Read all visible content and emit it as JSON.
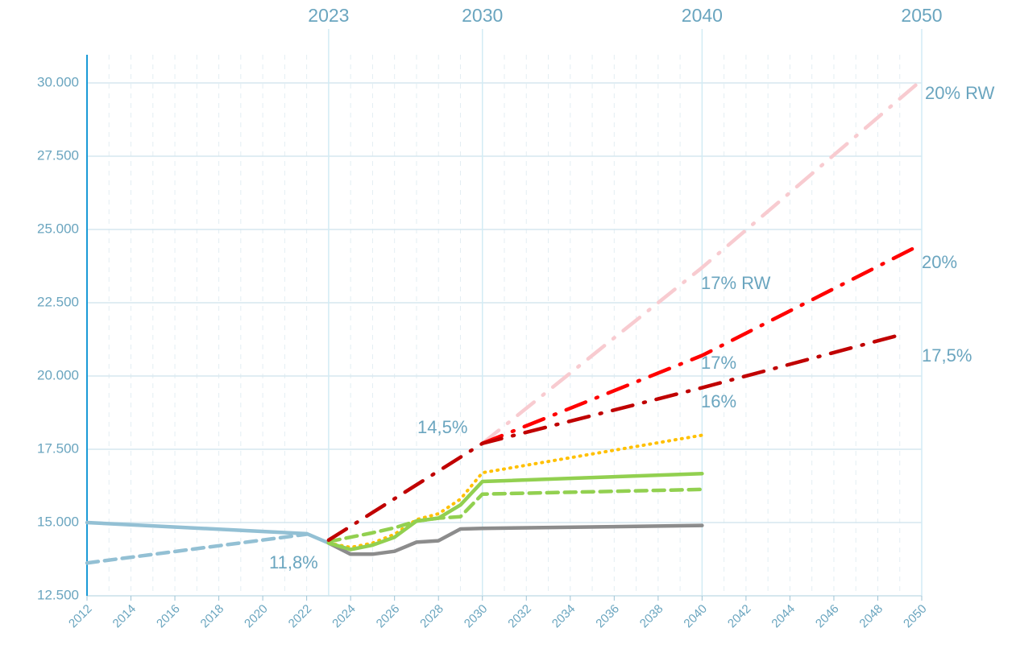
{
  "chart_data": {
    "type": "line",
    "xlim": [
      2012,
      2050
    ],
    "xticks": [
      2012,
      2014,
      2016,
      2018,
      2020,
      2022,
      2024,
      2026,
      2028,
      2030,
      2032,
      2034,
      2036,
      2038,
      2040,
      2042,
      2044,
      2046,
      2048,
      2050
    ],
    "ylim": [
      12500,
      30000
    ],
    "yticks": [
      {
        "value": 12500,
        "label": "12.500"
      },
      {
        "value": 15000,
        "label": "15.000"
      },
      {
        "value": 17500,
        "label": "17.500"
      },
      {
        "value": 20000,
        "label": "20.000"
      },
      {
        "value": 22500,
        "label": "22.500"
      },
      {
        "value": 25000,
        "label": "25.000"
      },
      {
        "value": 27500,
        "label": "27.500"
      },
      {
        "value": 30000,
        "label": "30.000"
      }
    ],
    "grid": true,
    "reference_lines": [
      2023,
      2030,
      2040,
      2050
    ],
    "series": [
      {
        "color": "#93c0d4",
        "style": "solid",
        "x": [
          2012,
          2022,
          2023
        ],
        "values": [
          15000,
          14620,
          14300
        ]
      },
      {
        "color": "#93c0d4",
        "style": "dashed",
        "x": [
          2012,
          2022
        ],
        "values": [
          13620,
          14600
        ]
      },
      {
        "color": "#8c8c8c",
        "style": "solid",
        "x": [
          2023,
          2024,
          2025,
          2026,
          2027,
          2028,
          2029,
          2030,
          2040
        ],
        "values": [
          14300,
          13920,
          13920,
          14020,
          14330,
          14380,
          14780,
          14800,
          14900
        ]
      },
      {
        "color": "#ffc000",
        "style": "dotted",
        "x": [
          2023,
          2024,
          2025,
          2026,
          2027,
          2028,
          2029,
          2030,
          2040
        ],
        "values": [
          14300,
          14150,
          14300,
          14600,
          15100,
          15300,
          15800,
          16700,
          17980
        ]
      },
      {
        "color": "#92d050",
        "style": "dashed",
        "x": [
          2023,
          2024,
          2025,
          2026,
          2027,
          2028,
          2029,
          2030,
          2040
        ],
        "values": [
          14350,
          14500,
          14650,
          14820,
          15050,
          15150,
          15200,
          15970,
          16130
        ]
      },
      {
        "color": "#92d050",
        "style": "solid",
        "x": [
          2023,
          2024,
          2025,
          2026,
          2027,
          2028,
          2029,
          2030,
          2040
        ],
        "values": [
          14300,
          14080,
          14230,
          14500,
          15050,
          15150,
          15600,
          16400,
          16670
        ]
      },
      {
        "color": "#f8cbd0",
        "style": "dashdot",
        "x": [
          2030,
          2040,
          2050
        ],
        "values": [
          17700,
          23700,
          30100
        ]
      },
      {
        "color": "#ff0000",
        "style": "dashdot",
        "x": [
          2030,
          2040,
          2050
        ],
        "values": [
          17700,
          20700,
          24500
        ]
      },
      {
        "color": "#c00000",
        "style": "dashdot",
        "x": [
          2023,
          2030,
          2040,
          2049
        ],
        "values": [
          14400,
          17700,
          19600,
          21400
        ]
      }
    ],
    "annotations": [
      "14,5%",
      "11,8%",
      "17% RW",
      "17%",
      "16%",
      "20% RW",
      "20%",
      "17,5%"
    ]
  }
}
